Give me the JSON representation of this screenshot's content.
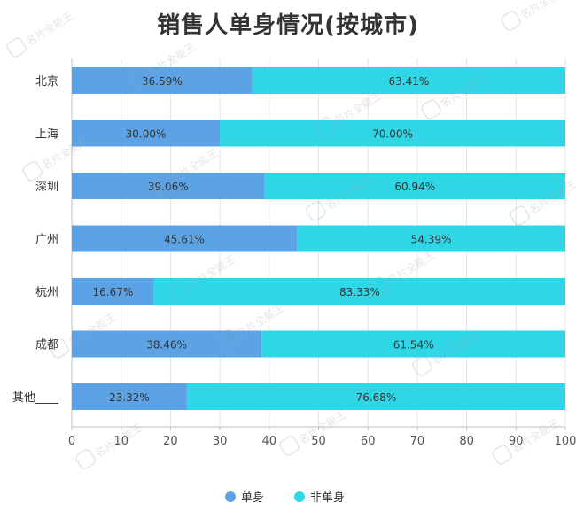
{
  "chart_data": {
    "type": "bar",
    "orientation": "horizontal",
    "stacked": true,
    "title": "销售人单身情况(按城市)",
    "categories": [
      "北京",
      "上海",
      "深圳",
      "广州",
      "杭州",
      "成都",
      "其他____"
    ],
    "series": [
      {
        "name": "单身",
        "color": "#5ca3e6",
        "values": [
          36.59,
          30.0,
          39.06,
          45.61,
          16.67,
          38.46,
          23.32
        ],
        "labels": [
          "36.59%",
          "30.00%",
          "39.06%",
          "45.61%",
          "16.67%",
          "38.46%",
          "23.32%"
        ]
      },
      {
        "name": "非单身",
        "color": "#2fd6e6",
        "values": [
          63.41,
          70.0,
          60.94,
          54.39,
          83.33,
          61.54,
          76.68
        ],
        "labels": [
          "63.41%",
          "70.00%",
          "60.94%",
          "54.39%",
          "83.33%",
          "61.54%",
          "76.68%"
        ]
      }
    ],
    "xlim": [
      0,
      100
    ],
    "xticks": [
      "0",
      "10",
      "20",
      "30",
      "40",
      "50",
      "60",
      "70",
      "80",
      "90",
      "100"
    ],
    "grid": true,
    "legend_position": "bottom-center",
    "watermark": "名片全能王"
  }
}
